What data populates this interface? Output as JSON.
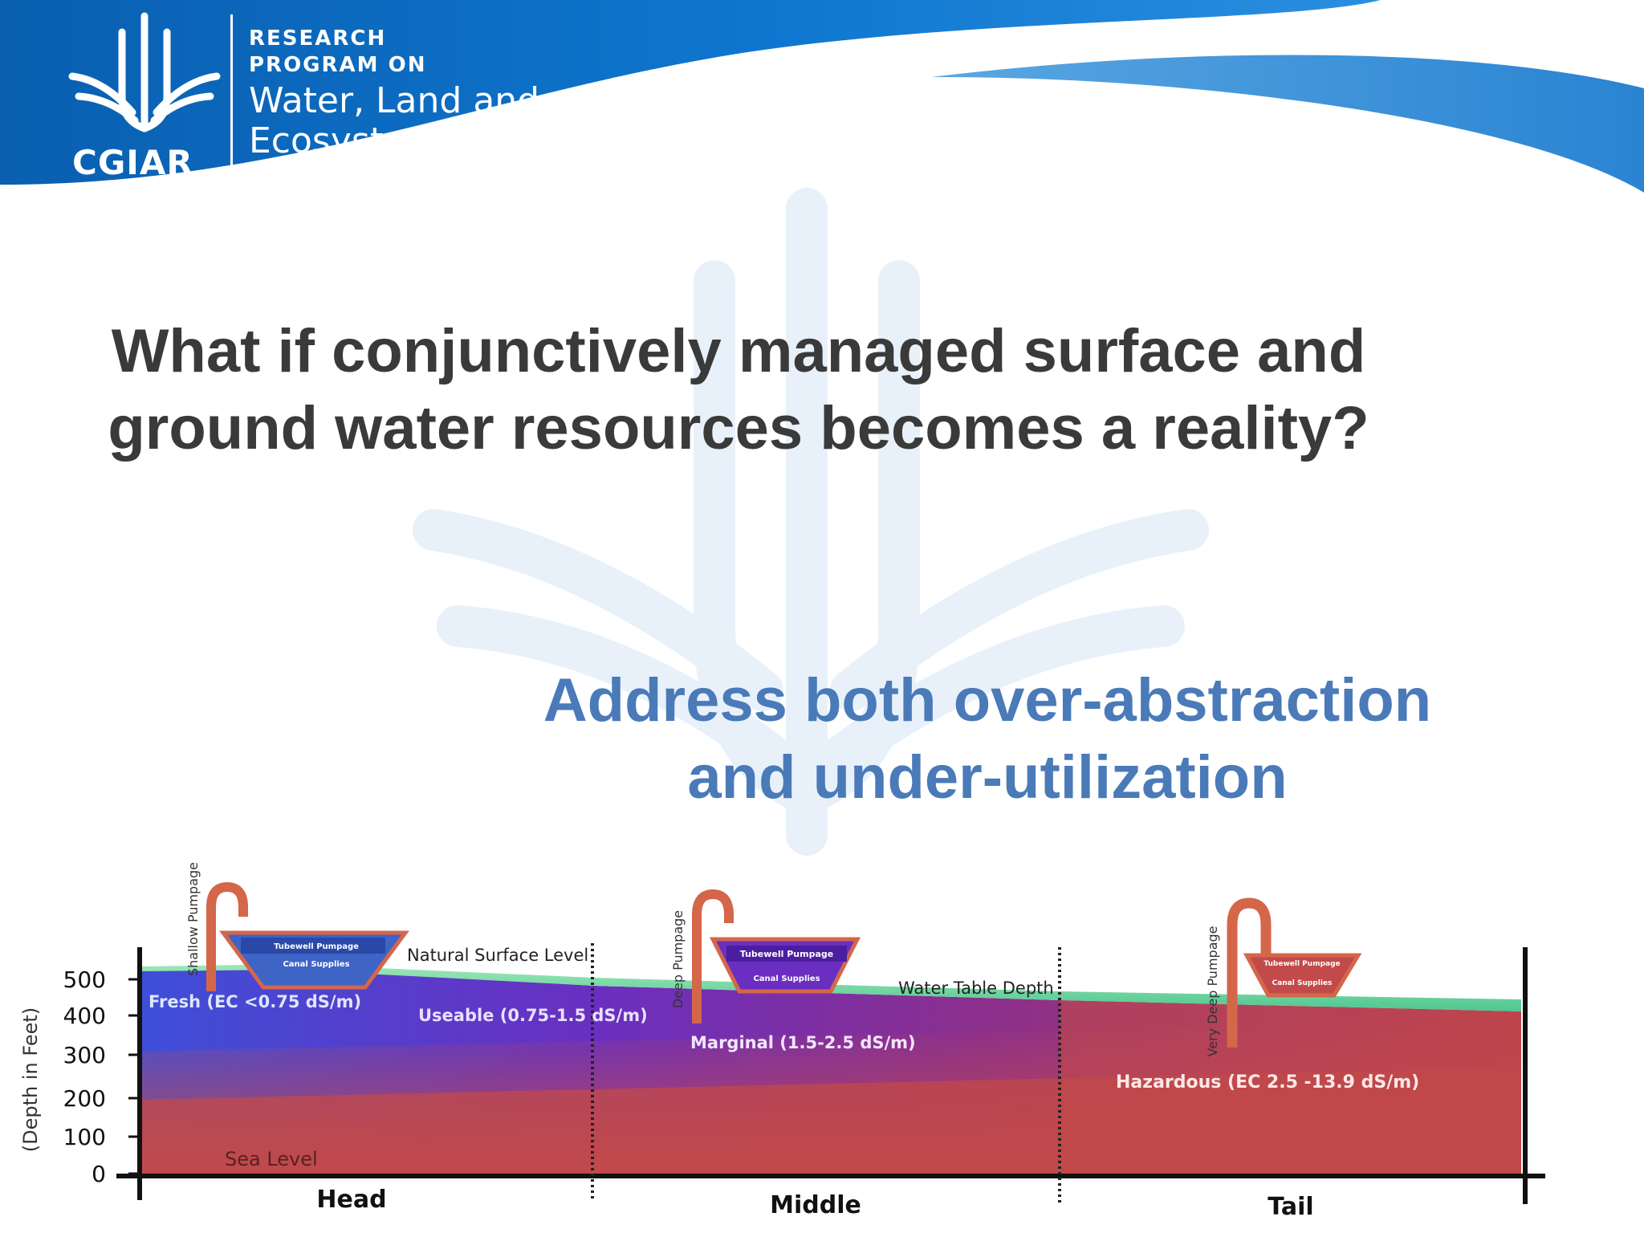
{
  "header": {
    "logo_text": "CGIAR",
    "program_line1": "RESEARCH",
    "program_line2": "PROGRAM ON",
    "program_name_line1": "Water, Land and",
    "program_name_line2": "Ecosystems"
  },
  "main_question": "What if conjunctively managed surface and ground water resources becomes a reality?",
  "subheading": "Address both over-abstraction and under-utilization",
  "diagram": {
    "y_axis_label": "(Depth in Feet)",
    "y_ticks": [
      "500",
      "400",
      "300",
      "200",
      "100",
      "0"
    ],
    "sea_level_label": "Sea Level",
    "natural_surface_label": "Natural Surface Level",
    "water_table_label": "Water Table Depth",
    "zones": {
      "fresh": "Fresh (EC <0.75 dS/m)",
      "useable": "Useable (0.75-1.5 dS/m)",
      "marginal": "Marginal (1.5-2.5 dS/m)",
      "hazardous": "Hazardous (EC  2.5 -13.9 dS/m)"
    },
    "pumps": {
      "head": "Shallow Pumpage",
      "middle": "Deep Pumpage",
      "tail": "Very Deep Pumpage"
    },
    "basin_labels": {
      "tubewell": "Tubewell Pumpage",
      "canal": "Canal Supplies"
    },
    "sections": [
      "Head",
      "Middle",
      "Tail"
    ],
    "colors": {
      "header_blue": "#0b6cbf",
      "title_gray": "#3a3a3a",
      "subheading_blue": "#4a7ab8",
      "fresh": "#3f55d6",
      "marginal": "#7a2fb5",
      "hazardous": "#c24a4a",
      "surface": "#63d29a",
      "pipe": "#c8553a"
    }
  }
}
